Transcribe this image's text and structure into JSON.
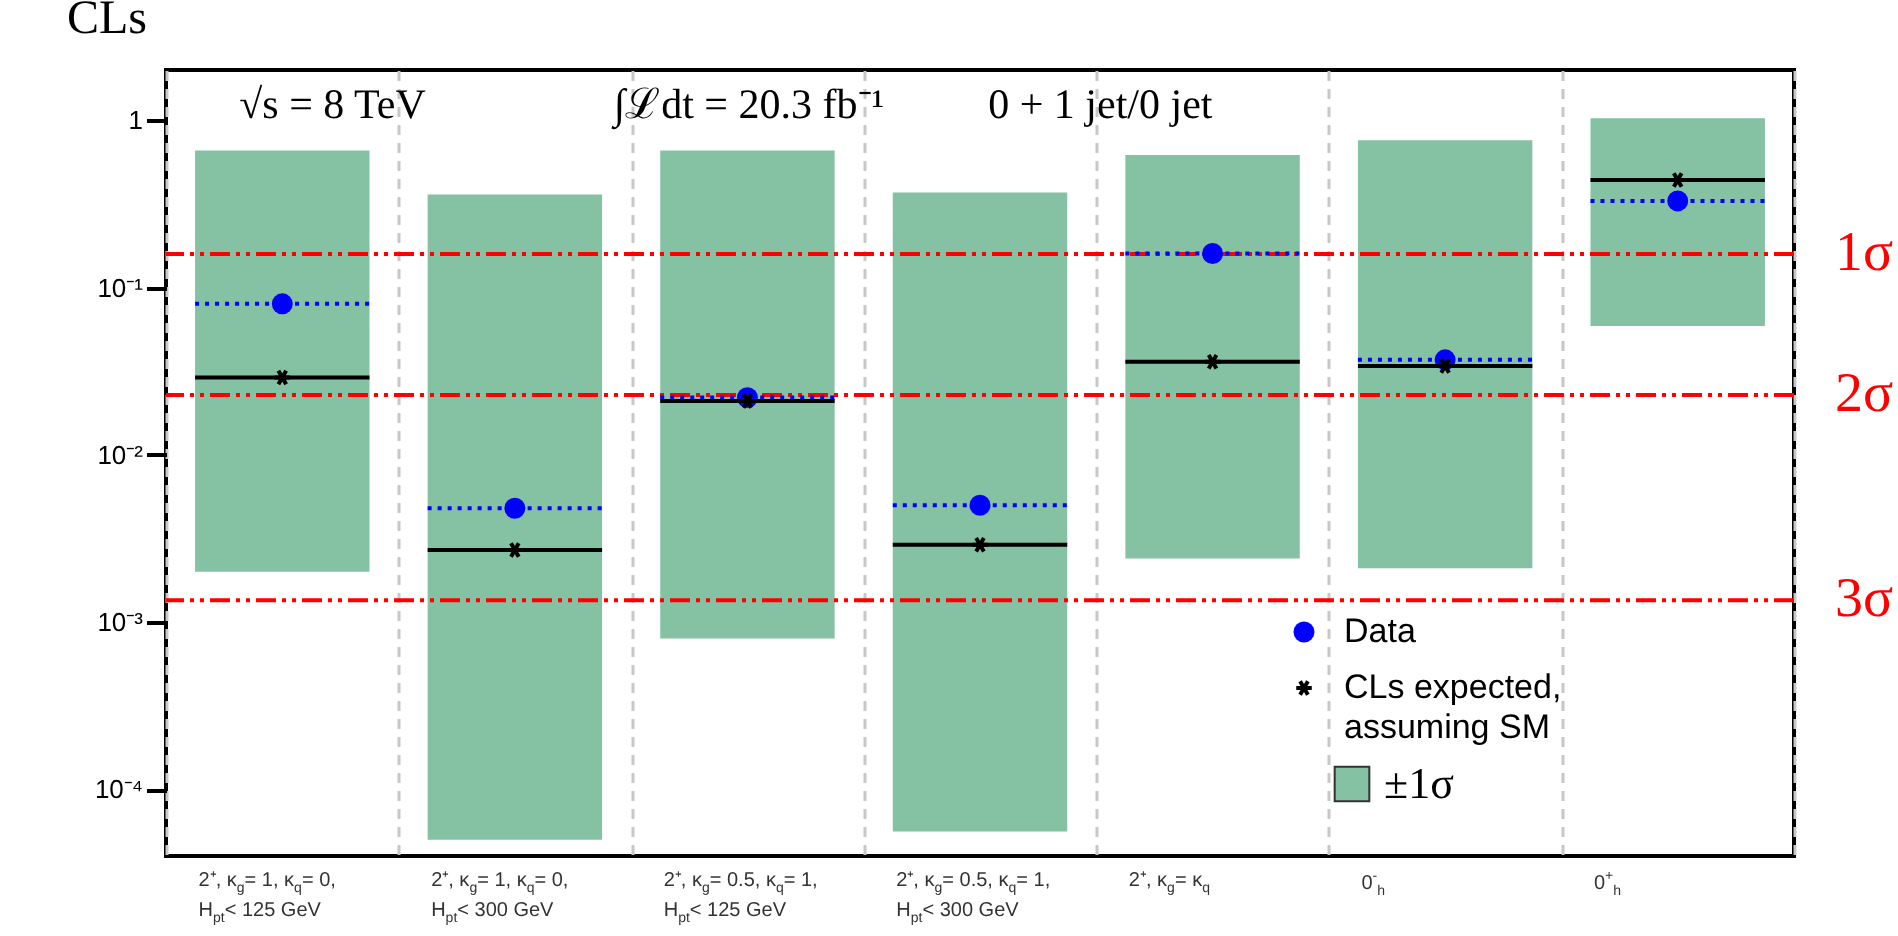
{
  "chart_data": {
    "type": "bar",
    "ylabel": "CLs",
    "annotations": [
      "√s = 8 TeV",
      "∫ℒdt = 20.3 fb⁻¹",
      "0 + 1 jet/0 jet"
    ],
    "categories": [
      "2⁺, κ$_{g}$= 1, κ$_{q}$= 0,\nH$_{pt}$< 125 GeV",
      "2⁺, κ$_{g}$= 1, κ$_{q}$= 0,\nH$_{pt}$< 300 GeV",
      "2⁺, κ$_{g}$= 0.5, κ$_{q}$= 1,\nH$_{pt}$< 125 GeV",
      "2⁺, κ$_{g}$= 0.5, κ$_{q}$= 1,\nH$_{pt}$< 300 GeV",
      "2⁺, κ$_{g}$= κ$_{q}$",
      "0$^{-}$$_{h}$",
      "0$^{+}$$_{h}$"
    ],
    "log": true,
    "ylim": [
      4e-05,
      2
    ],
    "yticks": [
      {
        "value": 0.0001,
        "label": "10⁻⁴"
      },
      {
        "value": 0.001,
        "label": "10⁻³"
      },
      {
        "value": 0.01,
        "label": "10⁻²"
      },
      {
        "value": 0.1,
        "label": "10⁻¹"
      },
      1
    ],
    "grid": "x",
    "legend": "bottom right",
    "series": [
      {
        "name": "Data",
        "type": "scatter",
        "marker": "circle",
        "line_style": "dotted",
        "color": "#0000ff",
        "values": [
          0.08,
          0.0048,
          0.022,
          0.005,
          0.16,
          0.037,
          0.33
        ]
      },
      {
        "name": "CLs expected,\nassuming SM",
        "type": "scatter",
        "marker": "cross",
        "line_style": "solid",
        "color": "#000000",
        "values": [
          0.029,
          0.0027,
          0.021,
          0.0029,
          0.036,
          0.034,
          0.44
        ]
      },
      {
        "name": "±1σ",
        "type": "bar",
        "color": "#85c1a3",
        "base": [
          0.002,
          5e-05,
          0.0008,
          5.6e-05,
          0.0024,
          0.0021,
          0.059
        ],
        "values": [
          0.658,
          0.35995,
          0.6592,
          0.369944,
          0.6176,
          0.7579,
          0.971
        ]
      }
    ],
    "ref_lines": [
      {
        "axis": "y",
        "value": 0.159,
        "label": "1σ",
        "color": "#ff0000",
        "line_style": "dashed"
      },
      {
        "axis": "y",
        "value": 0.0228,
        "label": "2σ",
        "color": "#ff0000",
        "line_style": "dashed"
      },
      {
        "axis": "y",
        "value": 0.00135,
        "label": "3σ",
        "color": "#ff0000",
        "line_style": "dashed"
      }
    ]
  }
}
